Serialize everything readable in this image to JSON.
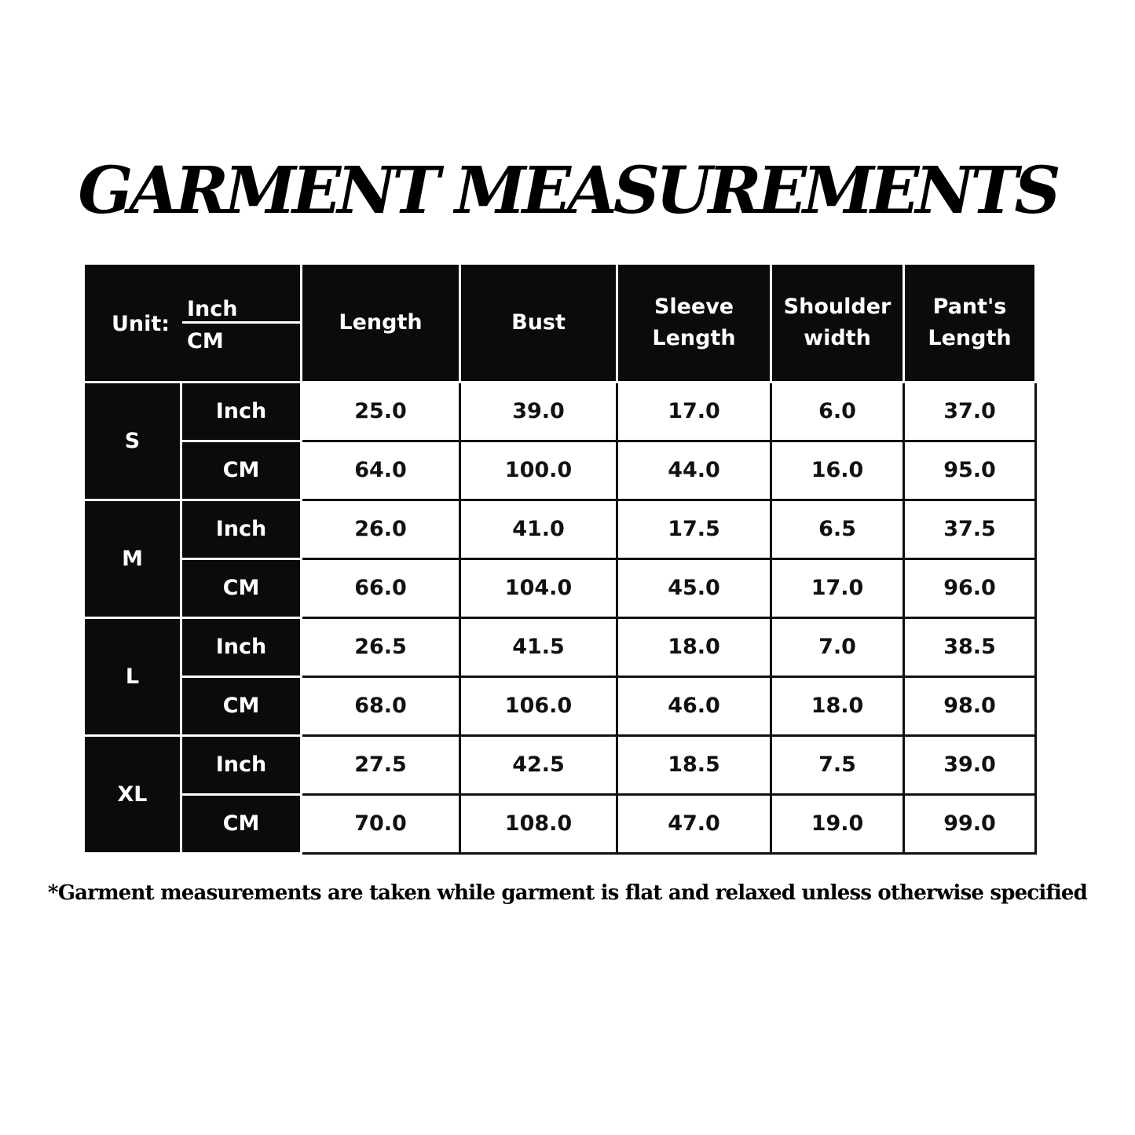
{
  "title": "GARMENT MEASUREMENTS",
  "table": {
    "unit_label": "Unit:",
    "unit_inch": "Inch",
    "unit_cm": "CM",
    "headers": [
      "Length",
      "Bust",
      "Sleeve Length",
      "Shoulder width",
      "Pant's Length"
    ],
    "sizes": [
      {
        "size": "S",
        "rows": [
          {
            "unit": "Inch",
            "values": [
              "25.0",
              "39.0",
              "17.0",
              "6.0",
              "37.0"
            ]
          },
          {
            "unit": "CM",
            "values": [
              "64.0",
              "100.0",
              "44.0",
              "16.0",
              "95.0"
            ]
          }
        ]
      },
      {
        "size": "M",
        "rows": [
          {
            "unit": "Inch",
            "values": [
              "26.0",
              "41.0",
              "17.5",
              "6.5",
              "37.5"
            ]
          },
          {
            "unit": "CM",
            "values": [
              "66.0",
              "104.0",
              "45.0",
              "17.0",
              "96.0"
            ]
          }
        ]
      },
      {
        "size": "L",
        "rows": [
          {
            "unit": "Inch",
            "values": [
              "26.5",
              "41.5",
              "18.0",
              "7.0",
              "38.5"
            ]
          },
          {
            "unit": "CM",
            "values": [
              "68.0",
              "106.0",
              "46.0",
              "18.0",
              "98.0"
            ]
          }
        ]
      },
      {
        "size": "XL",
        "rows": [
          {
            "unit": "Inch",
            "values": [
              "27.5",
              "42.5",
              "18.5",
              "7.5",
              "39.0"
            ]
          },
          {
            "unit": "CM",
            "values": [
              "70.0",
              "108.0",
              "47.0",
              "19.0",
              "99.0"
            ]
          }
        ]
      }
    ]
  },
  "footnote": "*Garment measurements are taken while garment is flat and relaxed unless otherwise specified",
  "colors": {
    "header_bg": "#0b0b0b",
    "header_text": "#ffffff",
    "cell_bg": "#ffffff"
  }
}
